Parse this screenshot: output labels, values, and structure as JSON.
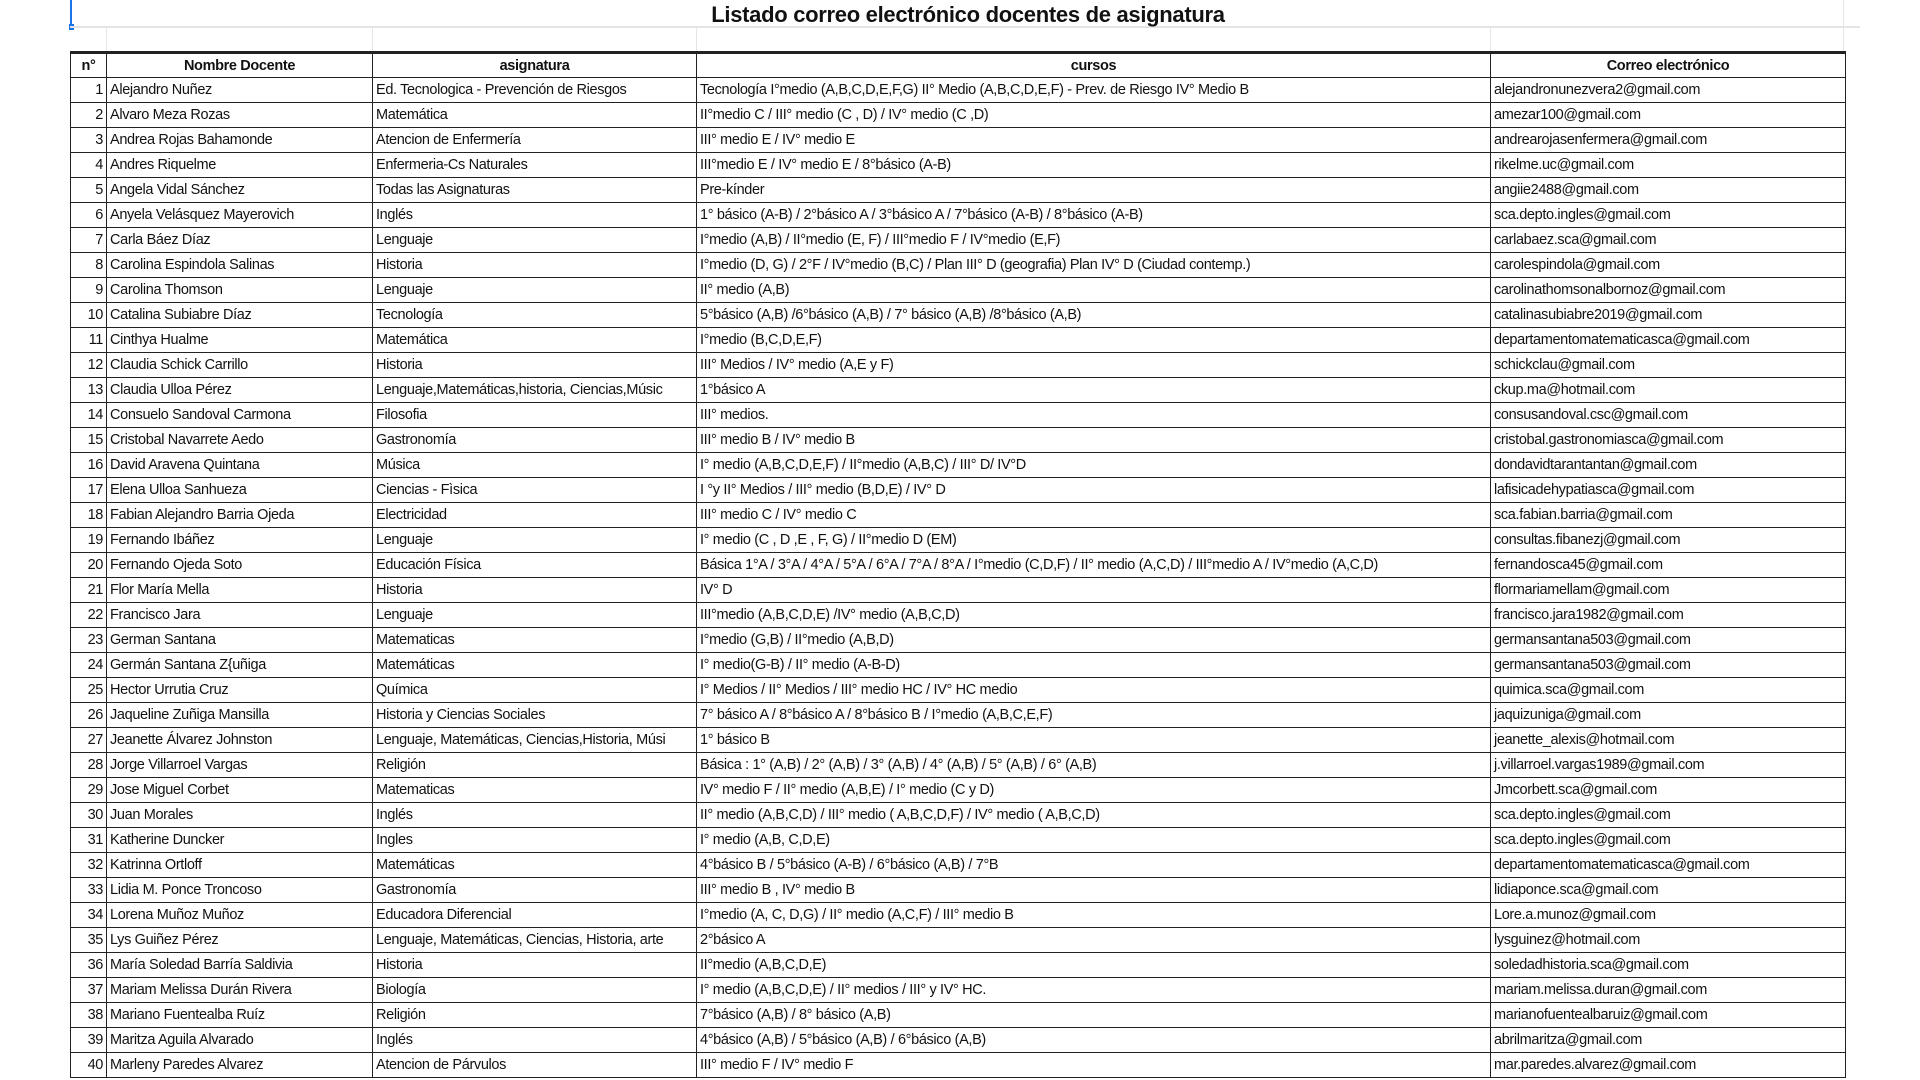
{
  "sheet": {
    "title": "Listado correo electrónico docentes de asignatura",
    "headers": [
      "n°",
      "Nombre Docente",
      "asignatura",
      "cursos",
      "Correo electrónico"
    ],
    "rows": [
      [
        "1",
        "Alejandro Nuñez",
        "Ed. Tecnologica - Prevención de Riesgos",
        "Tecnología I°medio (A,B,C,D,E,F,G) II° Medio (A,B,C,D,E,F)  - Prev. de Riesgo IV° Medio B",
        "alejandronunezvera2@gmail.com"
      ],
      [
        "2",
        "Alvaro Meza Rozas",
        "Matemática",
        "II°medio C / III° medio (C , D) / IV° medio (C ,D)",
        "amezar100@gmail.com"
      ],
      [
        "3",
        "Andrea Rojas Bahamonde",
        "Atencion de Enfermería",
        "III° medio E / IV° medio E",
        "andrearojasenfermera@gmail.com"
      ],
      [
        "4",
        "Andres Riquelme",
        "Enfermeria-Cs Naturales",
        "III°medio E / IV° medio E / 8°básico (A-B)",
        "rikelme.uc@gmail.com"
      ],
      [
        "5",
        "Angela Vidal Sánchez",
        "Todas las Asignaturas",
        "Pre-kínder",
        "angiie2488@gmail.com"
      ],
      [
        "6",
        "Anyela Velásquez Mayerovich",
        "Inglés",
        "1° básico (A-B) / 2°básico A / 3°básico A / 7°básico (A-B) / 8°básico (A-B)",
        "sca.depto.ingles@gmail.com"
      ],
      [
        "7",
        "Carla Báez Díaz",
        "Lenguaje",
        "I°medio (A,B) / II°medio (E, F) / III°medio F / IV°medio (E,F)",
        "carlabaez.sca@gmail.com"
      ],
      [
        "8",
        "Carolina Espindola Salinas",
        "Historia",
        "I°medio (D, G) /  2°F / IV°medio (B,C) / Plan III° D (geografia) Plan IV° D (Ciudad contemp.)",
        "carolespindola@gmail.com"
      ],
      [
        "9",
        "Carolina Thomson",
        "Lenguaje",
        "II° medio (A,B)",
        "carolinathomsonalbornoz@gmail.com"
      ],
      [
        "10",
        "Catalina Subiabre Díaz",
        "Tecnología",
        "5°básico (A,B) /6°básico (A,B) / 7° básico (A,B) /8°básico (A,B)",
        "catalinasubiabre2019@gmail.com"
      ],
      [
        "11",
        "Cinthya Hualme",
        "Matemática",
        "I°medio (B,C,D,E,F)",
        "departamentomatematicasca@gmail.com"
      ],
      [
        "12",
        "Claudia Schick Carrillo",
        "Historia",
        "III° Medios / IV° medio (A,E y F)",
        "schickclau@gmail.com"
      ],
      [
        "13",
        "Claudia Ulloa Pérez",
        "Lenguaje,Matemáticas,historia, Ciencias,Músic",
        "1°básico A",
        "ckup.ma@hotmail.com"
      ],
      [
        "14",
        "Consuelo Sandoval Carmona",
        "Filosofia",
        "III° medios.",
        "consusandoval.csc@gmail.com"
      ],
      [
        "15",
        "Cristobal Navarrete Aedo",
        "Gastronomía",
        "III° medio B / IV° medio B",
        "cristobal.gastronomiasca@gmail.com"
      ],
      [
        "16",
        "David Aravena Quintana",
        "Música",
        "I° medio (A,B,C,D,E,F) / II°medio (A,B,C)  / III° D/ IV°D",
        "dondavidtarantantan@gmail.com"
      ],
      [
        "17",
        "Elena Ulloa Sanhueza",
        "Ciencias - Fìsica",
        "I °y II° Medios / III° medio (B,D,E)  / IV° D",
        "lafisicadehypatiasca@gmail.com"
      ],
      [
        "18",
        "Fabian Alejandro Barria Ojeda",
        "Electricidad",
        "III° medio C /  IV° medio C",
        "sca.fabian.barria@gmail.com"
      ],
      [
        "19",
        "Fernando Ibáñez",
        "Lenguaje",
        "I° medio (C , D ,E , F, G) / II°medio D (EM)",
        "consultas.fibanezj@gmail.com"
      ],
      [
        "20",
        "Fernando Ojeda Soto",
        "Educación Física",
        "Básica 1°A / 3°A / 4°A / 5°A / 6°A / 7°A / 8°A /    I°medio (C,D,F) / II° medio (A,C,D) / III°medio A / IV°medio (A,C,D)",
        "fernandosca45@gmail.com"
      ],
      [
        "21",
        "Flor María Mella",
        "Historia",
        "IV° D",
        "flormariamellam@gmail.com"
      ],
      [
        "22",
        "Francisco Jara",
        "Lenguaje",
        "III°medio (A,B,C,D,E) /IV° medio (A,B,C,D)",
        "francisco.jara1982@gmail.com"
      ],
      [
        "23",
        "German Santana",
        "Matematicas",
        "I°medio (G,B)  / II°medio (A,B,D)",
        "germansantana503@gmail.com"
      ],
      [
        "24",
        "Germán Santana Z{uñiga",
        "Matemáticas",
        "I° medio(G-B) / II° medio (A-B-D)",
        "germansantana503@gmail.com"
      ],
      [
        "25",
        "Hector Urrutia Cruz",
        "Química",
        "I° Medios / II° Medios / III° medio HC / IV° HC medio",
        "quimica.sca@gmail.com"
      ],
      [
        "26",
        "Jaqueline Zuñiga Mansilla",
        "Historia y Ciencias Sociales",
        "7° básico A / 8°básico A / 8°básico B / I°medio  (A,B,C,E,F)",
        "jaquizuniga@gmail.com"
      ],
      [
        "27",
        "Jeanette Álvarez Johnston",
        "Lenguaje, Matemáticas, Ciencias,Historia, Músi",
        "1° básico B",
        "jeanette_alexis@hotmail.com"
      ],
      [
        "28",
        "Jorge Villarroel Vargas",
        "Religión",
        "Básica : 1° (A,B) / 2° (A,B) / 3° (A,B) / 4° (A,B) / 5° (A,B)  / 6° (A,B)",
        "j.villarroel.vargas1989@gmail.com"
      ],
      [
        "29",
        "Jose Miguel Corbet",
        "Matematicas",
        "IV° medio F / II° medio (A,B,E) / I° medio (C y D)",
        "Jmcorbett.sca@gmail.com"
      ],
      [
        "30",
        "Juan Morales",
        "Inglés",
        "II° medio (A,B,C,D) / III° medio ( A,B,C,D,F)  / IV° medio ( A,B,C,D)",
        "sca.depto.ingles@gmail.com"
      ],
      [
        "31",
        "Katherine Duncker",
        "Ingles",
        "I° medio (A,B, C,D,E)",
        "sca.depto.ingles@gmail.com"
      ],
      [
        "32",
        "Katrinna Ortloff",
        "Matemáticas",
        "4°básico B / 5°básico (A-B)  / 6°básico (A,B) / 7°B",
        "departamentomatematicasca@gmail.com"
      ],
      [
        "33",
        "Lidia M. Ponce Troncoso",
        "Gastronomía",
        "III° medio B ,  IV° medio B",
        "lidiaponce.sca@gmail.com"
      ],
      [
        "34",
        "Lorena Muñoz Muñoz",
        "Educadora Diferencial",
        "I°medio (A, C, D,G) / II° medio (A,C,F) / III° medio B",
        "Lore.a.munoz@gmail.com"
      ],
      [
        "35",
        "Lys Guiñez Pérez",
        "Lenguaje, Matemáticas, Ciencias, Historia, arte",
        "2°básico A",
        "lysguinez@hotmail.com"
      ],
      [
        "36",
        "María Soledad Barría Saldivia",
        "Historia",
        "II°medio (A,B,C,D,E)",
        "soledadhistoria.sca@gmail.com"
      ],
      [
        "37",
        "Mariam Melissa Durán Rivera",
        "Biología",
        "I° medio (A,B,C,D,E) / II° medios / III° y IV° HC.",
        "mariam.melissa.duran@gmail.com"
      ],
      [
        "38",
        "Mariano Fuentealba Ruíz",
        "Religión",
        "7°básico (A,B) / 8° básico (A,B)",
        "marianofuentealbaruiz@gmail.com"
      ],
      [
        "39",
        "Maritza Aguila Alvarado",
        "Inglés",
        "4°básico (A,B) / 5°básico (A,B) / 6°básico (A,B)",
        "abrilmaritza@gmail.com"
      ],
      [
        "40",
        "Marleny Paredes Alvarez",
        "Atencion de Párvulos",
        "III° medio F  /  IV° medio  F",
        "mar.paredes.alvarez@gmail.com"
      ]
    ]
  },
  "colors": {
    "selection": "#1a73e8",
    "border": "#222222",
    "gridline": "#e4e4e4"
  }
}
